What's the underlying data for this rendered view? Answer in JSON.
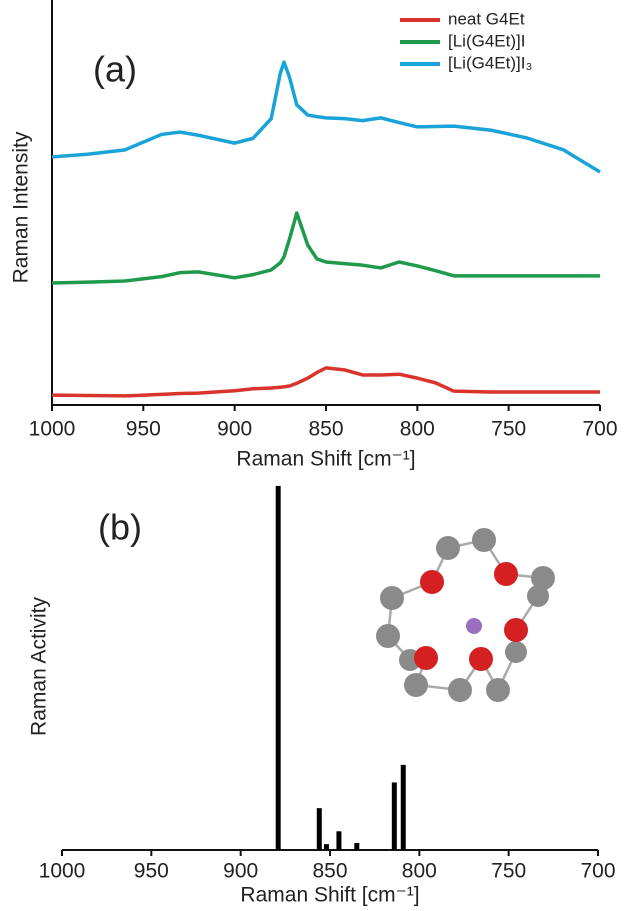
{
  "chart_data": [
    {
      "type": "line",
      "annotation": "(a)",
      "x_label": "Raman Shift [cm⁻¹]",
      "y_label": "Raman Intensity",
      "x": [
        1000,
        980,
        960,
        940,
        930,
        920,
        900,
        890,
        880,
        875,
        873,
        870,
        866,
        860,
        855,
        850,
        840,
        830,
        820,
        810,
        800,
        790,
        780,
        760,
        740,
        720,
        700
      ],
      "xlim": [
        1000,
        700
      ],
      "xticks": [
        1000,
        950,
        900,
        850,
        800,
        750,
        700
      ],
      "ylim": [
        0,
        100
      ],
      "legend": "upper-right",
      "series": [
        {
          "name": "neat G4Et",
          "color": "#d9342b",
          "values": [
            2.5,
            2.4,
            2.3,
            2.7,
            2.9,
            3.0,
            3.6,
            4.1,
            4.3,
            4.5,
            4.6,
            4.8,
            5.5,
            6.8,
            8.2,
            9.4,
            8.9,
            7.6,
            7.6,
            7.8,
            6.8,
            5.6,
            3.5,
            3.3,
            3.3,
            3.3,
            3.3
          ]
        },
        {
          "name": "[Li(G4Et)]I",
          "color": "#1f9a4a",
          "values": [
            30.9,
            31.1,
            31.4,
            32.5,
            33.5,
            33.7,
            32.2,
            33,
            34.2,
            36,
            37.5,
            42,
            48.6,
            40.5,
            37,
            36.2,
            35.8,
            35.4,
            34.7,
            36.2,
            35.2,
            34,
            32.7,
            32.7,
            32.7,
            32.7,
            32.7
          ]
        },
        {
          "name": "[Li(G4Et)]I₃",
          "color": "#1aa3d9",
          "values": [
            62.8,
            63.5,
            64.6,
            68.5,
            69.1,
            68.3,
            66.3,
            67.5,
            72.5,
            84,
            86.8,
            83,
            76,
            73.4,
            73,
            72.7,
            72.5,
            72,
            72.7,
            71.5,
            70.4,
            70.5,
            70.6,
            69.6,
            67.6,
            64.6,
            59.0
          ]
        }
      ]
    },
    {
      "type": "bar",
      "annotation": "(b)",
      "x_label": "Raman Shift [cm⁻¹]",
      "y_label": "Raman Activity",
      "x": [
        879,
        856,
        852,
        845,
        835,
        814,
        809
      ],
      "values": [
        99.2,
        11.4,
        1.6,
        5.1,
        1.9,
        18.4,
        23.2
      ],
      "color": "#000000",
      "xlim": [
        1000,
        700
      ],
      "xticks": [
        1000,
        950,
        900,
        850,
        800,
        750,
        700
      ],
      "ylim": [
        0,
        100
      ]
    }
  ]
}
